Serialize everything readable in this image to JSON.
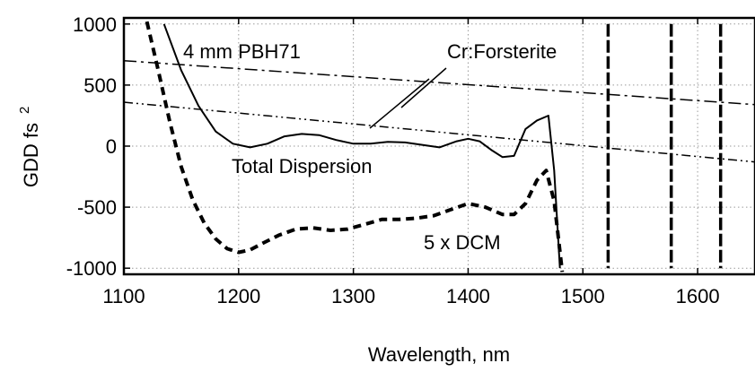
{
  "chart_data": {
    "type": "line",
    "title": "",
    "xlabel": "Wavelength, nm",
    "ylabel": "GDD fs",
    "ylabel_superscript": "2",
    "xlim": [
      1100,
      1650
    ],
    "ylim": [
      -1050,
      1050
    ],
    "xticks": [
      1100,
      1200,
      1300,
      1400,
      1500,
      1600
    ],
    "yticks": [
      1000,
      500,
      0,
      -500,
      -1000
    ],
    "xtick_labels": [
      "1100",
      "1200",
      "1300",
      "1400",
      "1500",
      "1600"
    ],
    "ytick_labels": [
      "1000",
      "500",
      "0",
      "-500",
      "-1000"
    ],
    "grid": true,
    "annotations": {
      "pbh71": "4 mm PBH71",
      "forsterite": "Cr:Forsterite",
      "total": "Total Dispersion",
      "dcm": "5 x DCM"
    },
    "series": [
      {
        "name": "4 mm PBH71",
        "style": "dash-dot",
        "x": [
          1100,
          1650
        ],
        "y": [
          700,
          340
        ]
      },
      {
        "name": "Cr:Forsterite",
        "style": "dash-dot-dot",
        "x": [
          1100,
          1650
        ],
        "y": [
          360,
          -130
        ]
      },
      {
        "name": "Total Dispersion",
        "style": "solid",
        "x": [
          1135,
          1150,
          1165,
          1180,
          1195,
          1210,
          1225,
          1240,
          1255,
          1270,
          1285,
          1300,
          1315,
          1330,
          1345,
          1360,
          1375,
          1390,
          1400,
          1410,
          1420,
          1430,
          1440,
          1450,
          1460,
          1470,
          1475,
          1480
        ],
        "y": [
          1000,
          620,
          330,
          120,
          20,
          -10,
          20,
          80,
          100,
          90,
          50,
          20,
          20,
          35,
          30,
          10,
          -10,
          40,
          60,
          40,
          -30,
          -90,
          -80,
          140,
          210,
          250,
          -200,
          -1000
        ]
      },
      {
        "name": "5 x DCM",
        "style": "dashed",
        "x": [
          1120,
          1130,
          1140,
          1150,
          1160,
          1170,
          1180,
          1190,
          1200,
          1210,
          1220,
          1235,
          1250,
          1265,
          1280,
          1295,
          1310,
          1325,
          1340,
          1355,
          1370,
          1385,
          1400,
          1415,
          1430,
          1440,
          1450,
          1460,
          1468,
          1475,
          1482
        ],
        "y": [
          1020,
          620,
          200,
          -170,
          -440,
          -630,
          -760,
          -840,
          -870,
          -850,
          -800,
          -730,
          -680,
          -670,
          -690,
          -680,
          -640,
          -600,
          -600,
          -590,
          -570,
          -520,
          -470,
          -500,
          -560,
          -560,
          -470,
          -280,
          -200,
          -450,
          -1030
        ]
      },
      {
        "name": "vertical-1520",
        "style": "dashed-vertical",
        "x": [
          1522,
          1522
        ],
        "y": [
          1000,
          -1000
        ]
      },
      {
        "name": "vertical-1575",
        "style": "dashed-vertical",
        "x": [
          1577,
          1577
        ],
        "y": [
          1000,
          -1000
        ]
      },
      {
        "name": "vertical-1620",
        "style": "dashed-vertical",
        "x": [
          1620,
          1620
        ],
        "y": [
          1000,
          -1000
        ]
      }
    ]
  }
}
